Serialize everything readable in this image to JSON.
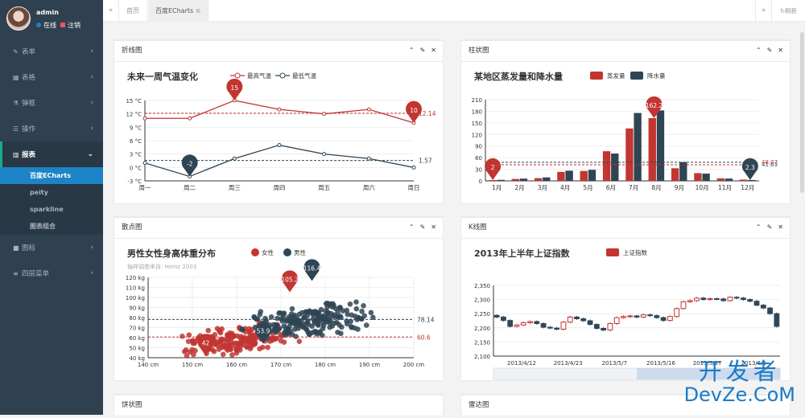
{
  "sidebar": {
    "user": "admin",
    "status_online": "在线",
    "status_logout": "注销",
    "menu": [
      {
        "label": "表单",
        "icon": "edit-icon"
      },
      {
        "label": "表格",
        "icon": "table-icon"
      },
      {
        "label": "弹框",
        "icon": "flask-icon"
      },
      {
        "label": "操作",
        "icon": "list-icon"
      },
      {
        "label": "报表",
        "icon": "bar-chart-icon"
      },
      {
        "label": "图标",
        "icon": "book-icon"
      },
      {
        "label": "四层菜单",
        "icon": "bars-icon"
      }
    ],
    "submenu": [
      "百度ECharts",
      "peity",
      "sparkline",
      "图表组合"
    ]
  },
  "topbar": {
    "tabs": [
      "首页",
      "百度ECharts"
    ],
    "refresh": "刷新"
  },
  "panels": {
    "line": "折线图",
    "bar": "柱状图",
    "scatter": "散点图",
    "kline": "K线图",
    "pie": "饼状图",
    "radar": "雷达图"
  },
  "watermark": {
    "line1": "开发者",
    "line2": "DevZe.CoM"
  },
  "chart_data": [
    {
      "type": "line",
      "title": "未来一周气温变化",
      "categories": [
        "周一",
        "周二",
        "周三",
        "周四",
        "周五",
        "周六",
        "周日"
      ],
      "series": [
        {
          "name": "最高气温",
          "values": [
            11,
            11,
            15,
            13,
            12,
            13,
            10
          ],
          "color": "#c23531"
        },
        {
          "name": "最低气温",
          "values": [
            1,
            -2,
            2,
            5,
            3,
            2,
            0
          ],
          "color": "#2f4554"
        }
      ],
      "ylim": [
        -3,
        15
      ],
      "yticks": [
        "-3 °C",
        "0 °C",
        "3 °C",
        "6 °C",
        "9 °C",
        "12 °C",
        "15 °C"
      ],
      "markers": [
        "15",
        "10",
        "-2"
      ],
      "avg_labels": [
        "12.14",
        "1.57"
      ]
    },
    {
      "type": "bar",
      "title": "某地区蒸发量和降水量",
      "categories": [
        "1月",
        "2月",
        "3月",
        "4月",
        "5月",
        "6月",
        "7月",
        "8月",
        "9月",
        "10月",
        "11月",
        "12月"
      ],
      "series": [
        {
          "name": "蒸发量",
          "values": [
            2,
            4.9,
            7,
            23.2,
            25.6,
            76.7,
            135.6,
            162.2,
            32.6,
            20,
            6.4,
            3.3
          ],
          "color": "#c23531"
        },
        {
          "name": "降水量",
          "values": [
            2.6,
            5.9,
            9,
            26.4,
            28.7,
            70.7,
            175.6,
            182.2,
            48.7,
            18.8,
            6,
            2.3
          ],
          "color": "#2f4554"
        }
      ],
      "ylim": [
        0,
        210
      ],
      "yticks": [
        "0",
        "30",
        "60",
        "90",
        "120",
        "150",
        "180",
        "210"
      ],
      "markers": [
        "2",
        "162.2",
        "2.3"
      ],
      "avg_labels": [
        "48.07",
        "41.63"
      ]
    },
    {
      "type": "scatter",
      "title": "男性女性身高体重分布",
      "subtitle": "抽样调查来自: Heinz  2003",
      "legend": [
        "女性",
        "男性"
      ],
      "xticks": [
        "140 cm",
        "150 cm",
        "160 cm",
        "170 cm",
        "180 cm",
        "190 cm",
        "200 cm"
      ],
      "yticks": [
        "40 kg",
        "50 kg",
        "60 kg",
        "70 kg",
        "80 kg",
        "90 kg",
        "100 kg",
        "110 kg",
        "120 kg"
      ],
      "xlim": [
        140,
        200
      ],
      "ylim": [
        40,
        120
      ],
      "markers": [
        "105.2",
        "116.4",
        "42",
        "53.9"
      ],
      "avg_labels": [
        "78.14",
        "60.6"
      ]
    },
    {
      "type": "candlestick",
      "title": "2013年上半年上证指数",
      "legend": [
        "上证指数"
      ],
      "yticks": [
        "2,100",
        "2,150",
        "2,200",
        "2,250",
        "2,300",
        "2,350"
      ],
      "xticks": [
        "2013/4/12",
        "2013/4/23",
        "2013/5/7",
        "2013/5/16",
        "2013/5/27",
        "2013/6/5"
      ],
      "ylim": [
        2100,
        2350
      ],
      "close": [
        2238,
        2226,
        2205,
        2210,
        2218,
        2222,
        2215,
        2202,
        2199,
        2195,
        2220,
        2238,
        2232,
        2225,
        2212,
        2198,
        2192,
        2215,
        2236,
        2240,
        2242,
        2238,
        2246,
        2243,
        2236,
        2226,
        2240,
        2268,
        2292,
        2296,
        2305,
        2300,
        2303,
        2302,
        2296,
        2308,
        2305,
        2300,
        2294,
        2280,
        2270,
        2250,
        2205
      ]
    }
  ]
}
